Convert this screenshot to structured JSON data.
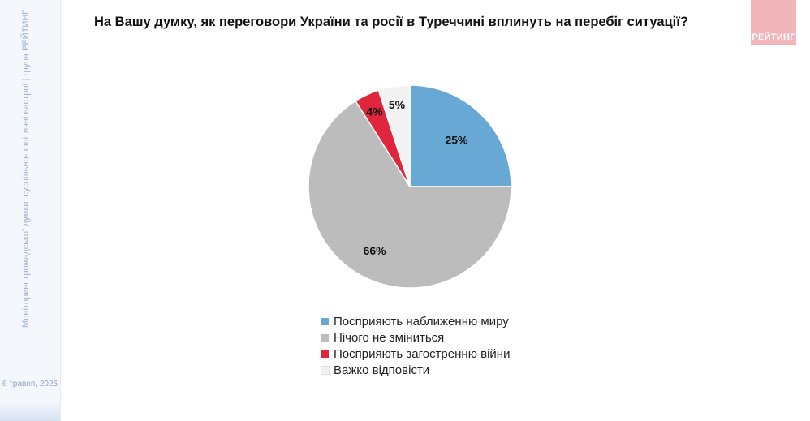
{
  "title": "На Вашу думку, як переговори України та росії в Туреччині вплинуть на перебіг ситуації?",
  "logo_text": "РЕЙТИНГ",
  "sidebar": {
    "caption": "Моніторинг громадської думки: суспільно-політичні настрої | група РЕЙТИНГ",
    "date": "6 травня, 2025"
  },
  "chart_data": {
    "type": "pie",
    "title": "",
    "slices": [
      {
        "label": "Посприяють наближенню миру",
        "value": 25,
        "value_label": "25%",
        "color": "#67a9d4"
      },
      {
        "label": "Нічого не зміниться",
        "value": 66,
        "value_label": "66%",
        "color": "#bcbcbc"
      },
      {
        "label": "Посприяють загостренню війни",
        "value": 4,
        "value_label": "4%",
        "color": "#e0263d"
      },
      {
        "label": "Важко відповісти",
        "value": 5,
        "value_label": "5%",
        "color": "#f2f2f2"
      }
    ],
    "legend_position": "bottom"
  }
}
